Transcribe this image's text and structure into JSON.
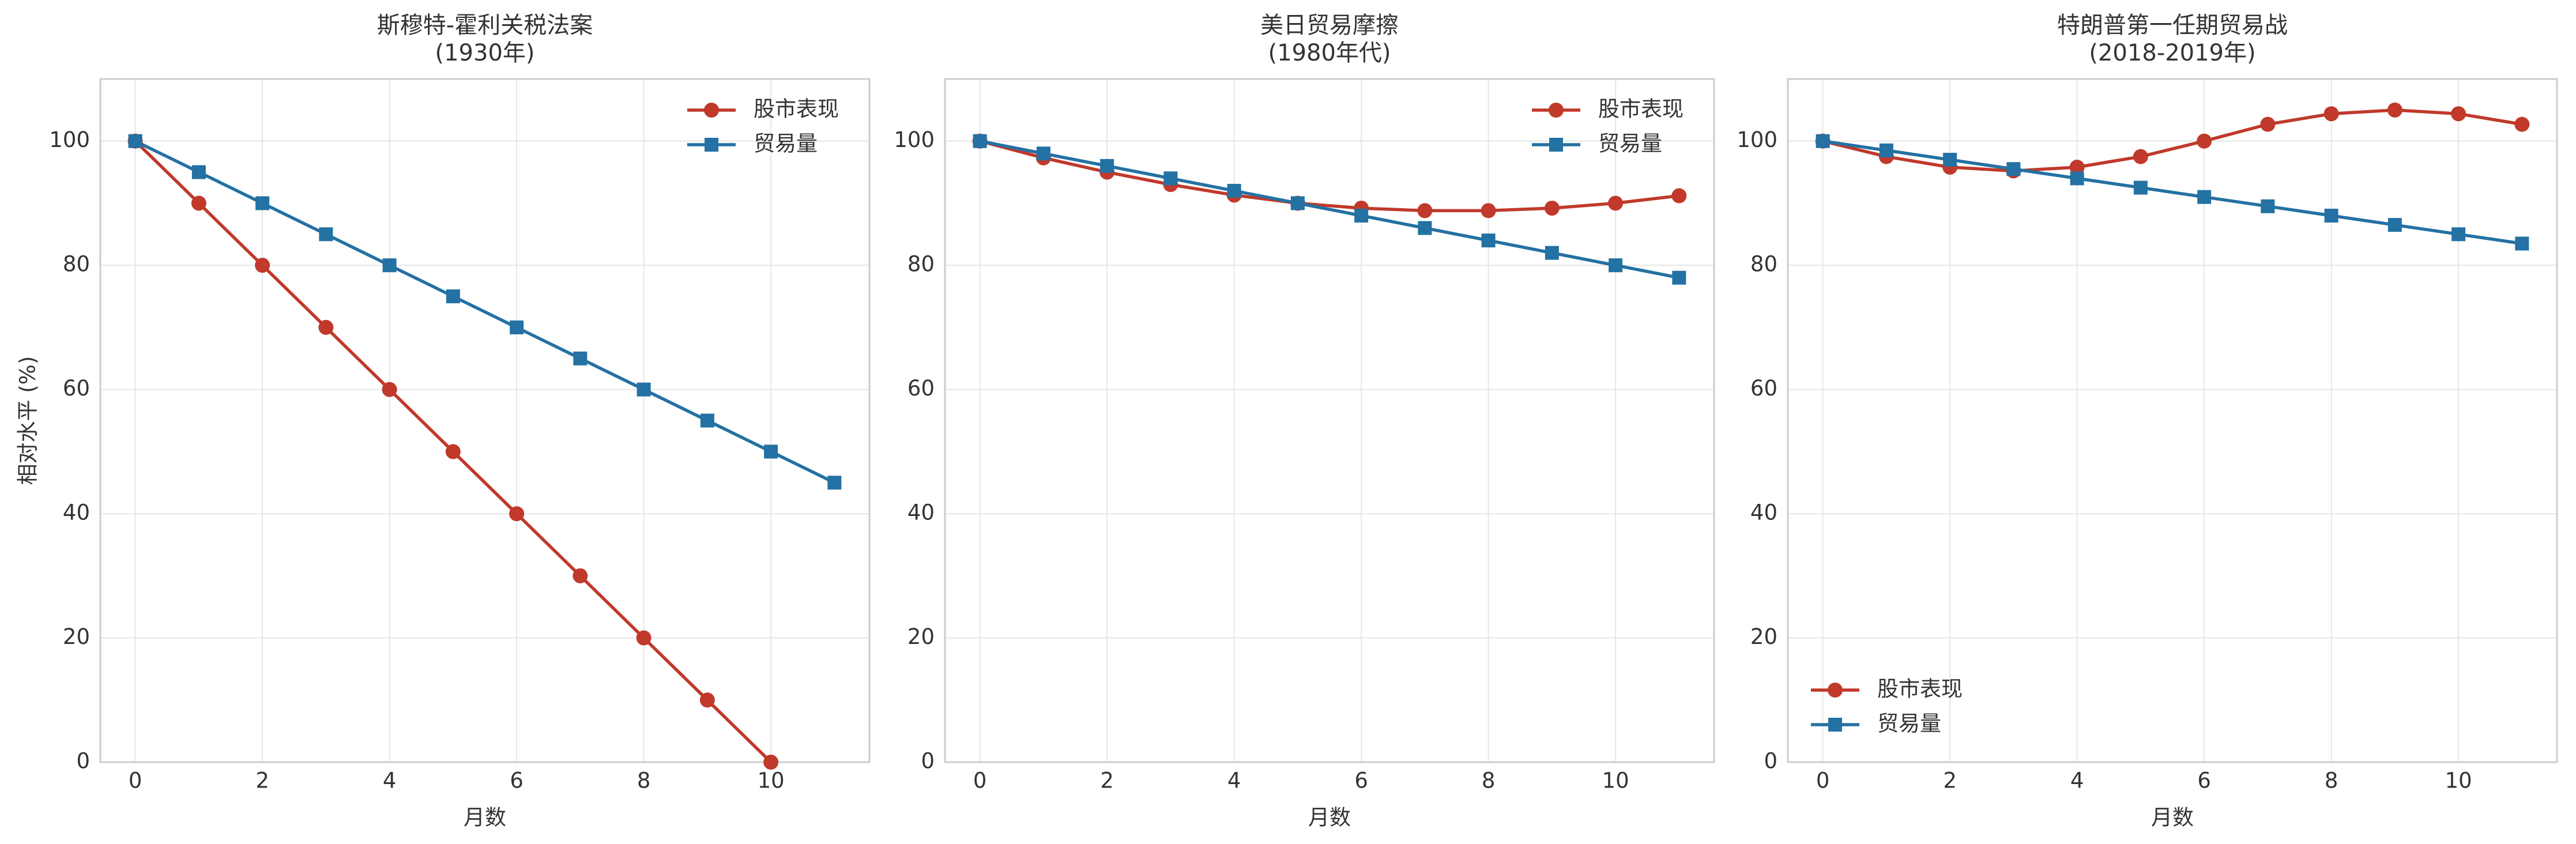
{
  "chart_data": [
    {
      "type": "line",
      "title": [
        "斯穆特-霍利关税法案",
        "(1930年)"
      ],
      "xlabel": "月数",
      "ylabel": "相对水平 (%)",
      "x": [
        0,
        1,
        2,
        3,
        4,
        5,
        6,
        7,
        8,
        9,
        10,
        11
      ],
      "xlim": [
        -0.55,
        11.55
      ],
      "ylim": [
        0,
        110
      ],
      "xticks": [
        0,
        2,
        4,
        6,
        8,
        10
      ],
      "yticks": [
        0,
        20,
        40,
        60,
        80,
        100
      ],
      "grid": true,
      "legend": "upper right",
      "series": [
        {
          "name": "股市表现",
          "color": "#c0392b",
          "marker": "circle",
          "values": [
            100,
            90,
            80,
            70,
            60,
            50,
            40,
            30,
            20,
            10,
            0,
            null
          ]
        },
        {
          "name": "贸易量",
          "color": "#2471a3",
          "marker": "square",
          "values": [
            100,
            95,
            90,
            85,
            80,
            75,
            70,
            65,
            60,
            55,
            50,
            45
          ]
        }
      ]
    },
    {
      "type": "line",
      "title": [
        "美日贸易摩擦",
        "(1980年代)"
      ],
      "xlabel": "月数",
      "x": [
        0,
        1,
        2,
        3,
        4,
        5,
        6,
        7,
        8,
        9,
        10,
        11
      ],
      "xlim": [
        -0.55,
        11.55
      ],
      "ylim": [
        0,
        110
      ],
      "xticks": [
        0,
        2,
        4,
        6,
        8,
        10
      ],
      "yticks": [
        0,
        20,
        40,
        60,
        80,
        100
      ],
      "grid": true,
      "legend": "upper right",
      "series": [
        {
          "name": "股市表现",
          "color": "#c0392b",
          "marker": "circle",
          "values": [
            100,
            97.3,
            95,
            93,
            91.3,
            90,
            89.2,
            88.8,
            88.8,
            89.2,
            90,
            91.2
          ]
        },
        {
          "name": "贸易量",
          "color": "#2471a3",
          "marker": "square",
          "values": [
            100,
            98,
            96,
            94,
            92,
            90,
            88,
            86,
            84,
            82,
            80,
            78
          ]
        }
      ]
    },
    {
      "type": "line",
      "title": [
        "特朗普第一任期贸易战",
        "(2018-2019年)"
      ],
      "xlabel": "月数",
      "x": [
        0,
        1,
        2,
        3,
        4,
        5,
        6,
        7,
        8,
        9,
        10,
        11
      ],
      "xlim": [
        -0.55,
        11.55
      ],
      "ylim": [
        0,
        110
      ],
      "xticks": [
        0,
        2,
        4,
        6,
        8,
        10
      ],
      "yticks": [
        0,
        20,
        40,
        60,
        80,
        100
      ],
      "grid": true,
      "legend": "lower left",
      "series": [
        {
          "name": "股市表现",
          "color": "#c0392b",
          "marker": "circle",
          "values": [
            100,
            97.5,
            95.8,
            95.2,
            95.8,
            97.5,
            100,
            102.7,
            104.4,
            105,
            104.4,
            102.7
          ]
        },
        {
          "name": "贸易量",
          "color": "#2471a3",
          "marker": "square",
          "values": [
            100,
            98.5,
            97,
            95.5,
            94,
            92.5,
            91,
            89.5,
            88,
            86.5,
            85,
            83.5
          ]
        }
      ]
    }
  ]
}
